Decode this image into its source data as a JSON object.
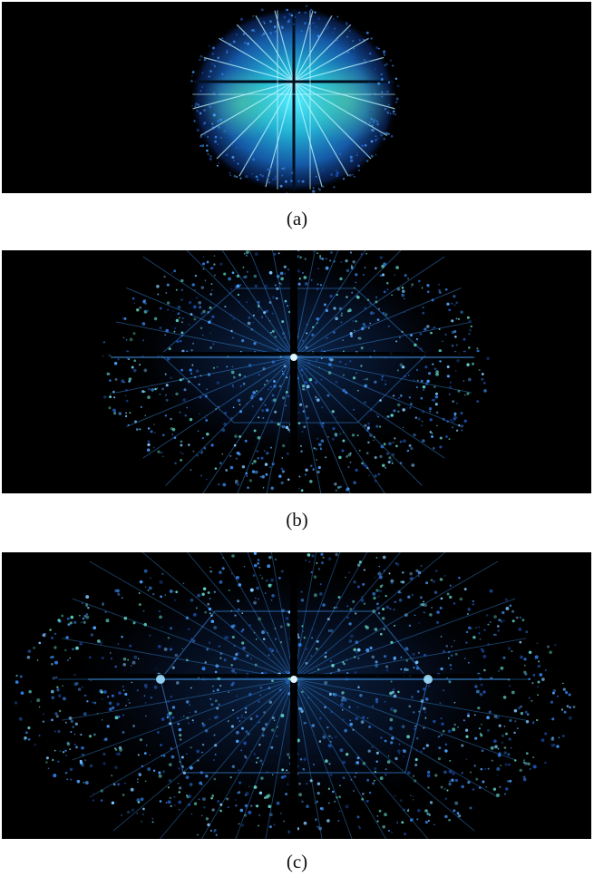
{
  "figure": {
    "panels": [
      {
        "id": "a",
        "caption": "(a)",
        "depiction": "dense-oval-diffraction-pattern",
        "colors": {
          "core": "#2fd8e8",
          "mid": "#1e7fd6",
          "edge": "#0b2a6e",
          "accent": "#3fbf7a"
        }
      },
      {
        "id": "b",
        "caption": "(b)",
        "depiction": "sparse-diffraction-pattern-with-rays",
        "colors": {
          "spot": "#3a86ff",
          "bright": "#7fd0ff",
          "accent": "#2fbf8a"
        }
      },
      {
        "id": "c",
        "caption": "(c)",
        "depiction": "wide-trapezoid-diffraction-pattern",
        "colors": {
          "spot": "#3a86ff",
          "bright": "#8fd6ff",
          "accent": "#2fbf8a"
        }
      }
    ]
  }
}
